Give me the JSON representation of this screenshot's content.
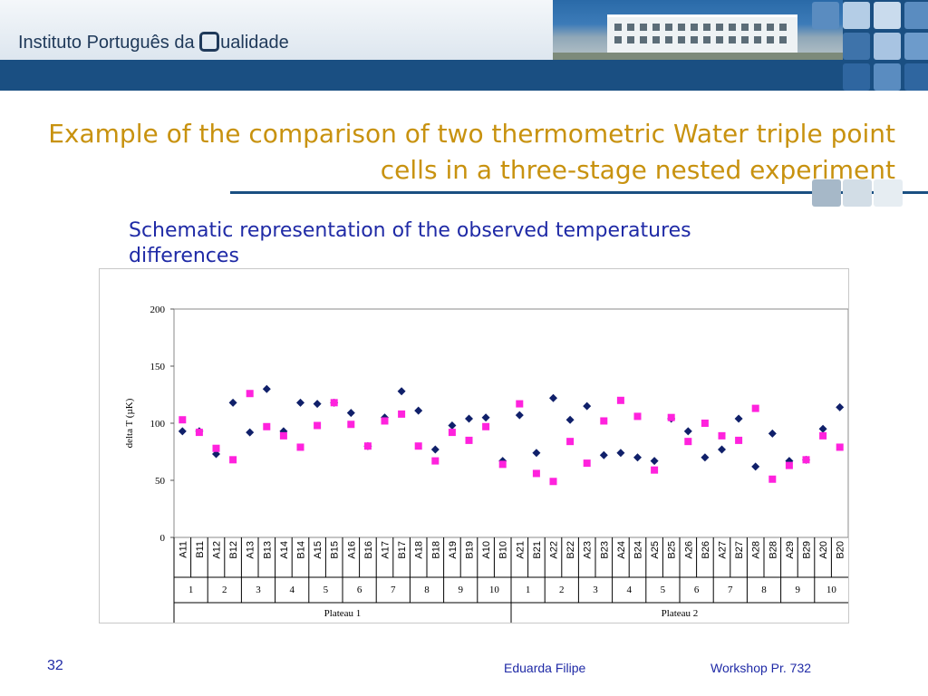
{
  "header": {
    "logo_text_before": "Instituto Português da ",
    "logo_text_after": "ualidade"
  },
  "colors": {
    "header_blue": "#1a4f82",
    "title_gold": "#c8920f",
    "subtitle_blue": "#1f2aa6",
    "series_a": "#10206a",
    "series_b": "#ff22dd"
  },
  "slide": {
    "title": "Example of the comparison of two thermometric Water triple point cells in a three-stage nested experiment",
    "subtitle": "Schematic representation of the observed temperatures differences"
  },
  "footer": {
    "slide_number": "32",
    "author": "Eduarda Filipe",
    "event": "Workshop Pr. 732"
  },
  "chart_data": {
    "type": "scatter",
    "ylabel": "delta  T  (µK)",
    "ylim": [
      0,
      200
    ],
    "yticks": [
      0,
      50,
      100,
      150,
      200
    ],
    "categories": [
      "A11",
      "B11",
      "A12",
      "B12",
      "A13",
      "B13",
      "A14",
      "B14",
      "A15",
      "B15",
      "A16",
      "B16",
      "A17",
      "B17",
      "A18",
      "B18",
      "A19",
      "B19",
      "A10",
      "B10",
      "A21",
      "B21",
      "A22",
      "B22",
      "A23",
      "B23",
      "A24",
      "B24",
      "A25",
      "B25",
      "A26",
      "B26",
      "A27",
      "B27",
      "A28",
      "B28",
      "A29",
      "B29",
      "A20",
      "B20"
    ],
    "runs": [
      "1",
      "2",
      "3",
      "4",
      "5",
      "6",
      "7",
      "8",
      "9",
      "10",
      "1",
      "2",
      "3",
      "4",
      "5",
      "6",
      "7",
      "8",
      "9",
      "10"
    ],
    "plateaus": [
      "Plateau 1",
      "Plateau 2"
    ],
    "grid": false,
    "series": [
      {
        "marker": "diamond",
        "values": [
          93,
          93,
          73,
          118,
          92,
          130,
          93,
          118,
          117,
          118,
          109,
          80,
          105,
          128,
          111,
          77,
          98,
          104,
          105,
          67,
          107,
          74,
          122,
          103,
          115,
          72,
          74,
          70,
          67,
          104,
          93,
          70,
          77,
          104,
          62,
          91,
          67,
          68,
          95,
          114
        ]
      },
      {
        "marker": "square",
        "values": [
          103,
          92,
          78,
          68,
          126,
          97,
          89,
          79,
          98,
          118,
          99,
          80,
          102,
          108,
          80,
          67,
          92,
          85,
          97,
          64,
          117,
          56,
          49,
          84,
          65,
          102,
          120,
          106,
          59,
          105,
          84,
          100,
          89,
          85,
          113,
          51,
          63,
          68,
          89,
          79
        ]
      }
    ]
  }
}
